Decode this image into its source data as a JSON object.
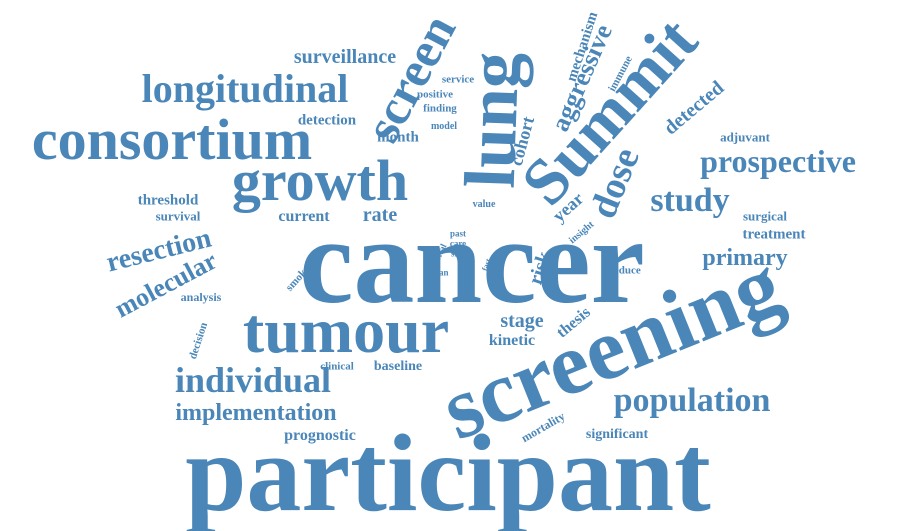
{
  "cloud": {
    "color": "#4a86b8",
    "words": [
      "participant",
      "cancer",
      "screening",
      "screen",
      "lung",
      "Summit",
      "consortium",
      "growth",
      "tumour",
      "longitudinal",
      "individual",
      "prospective",
      "population",
      "implementation",
      "resection",
      "molecular",
      "dose",
      "study",
      "primary",
      "aggressive",
      "surveillance",
      "detected",
      "cohort",
      "mechanism",
      "stage",
      "rate",
      "current",
      "risk",
      "year",
      "thesis",
      "kinetic",
      "prognostic",
      "threshold",
      "survival",
      "detection",
      "month",
      "baseline",
      "clinical",
      "significant",
      "mortality",
      "treatment",
      "surgical",
      "adjuvant",
      "analysis",
      "decision",
      "smoker",
      "reduce",
      "service",
      "positive",
      "finding",
      "model",
      "immune",
      "insight",
      "value",
      "past",
      "care",
      "size",
      "serial",
      "scan",
      "fast"
    ]
  }
}
